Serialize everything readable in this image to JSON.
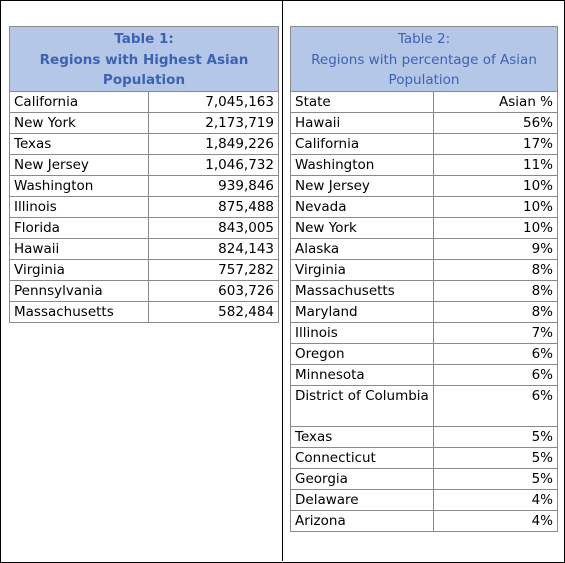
{
  "table1": {
    "title_line1": "Table 1:",
    "title_rest": "Regions with Highest Asian Population",
    "rows": [
      {
        "name": "California",
        "value": "7,045,163"
      },
      {
        "name": "New York",
        "value": "2,173,719"
      },
      {
        "name": "Texas",
        "value": "1,849,226"
      },
      {
        "name": "New Jersey",
        "value": "1,046,732"
      },
      {
        "name": "Washington",
        "value": "939,846"
      },
      {
        "name": "Illinois",
        "value": "875,488"
      },
      {
        "name": "Florida",
        "value": "843,005"
      },
      {
        "name": "Hawaii",
        "value": "824,143"
      },
      {
        "name": "Virginia",
        "value": "757,282"
      },
      {
        "name": "Pennsylvania",
        "value": "603,726"
      },
      {
        "name": "Massachusetts",
        "value": "582,484"
      }
    ]
  },
  "table2": {
    "title_line1": "Table 2:",
    "title_rest": "Regions with percentage of Asian Population",
    "header": {
      "state": "State",
      "pct": "Asian %"
    },
    "rows": [
      {
        "state": "Hawaii",
        "pct": "56%"
      },
      {
        "state": "California",
        "pct": "17%"
      },
      {
        "state": "Washington",
        "pct": "11%"
      },
      {
        "state": "New Jersey",
        "pct": "10%"
      },
      {
        "state": "Nevada",
        "pct": "10%"
      },
      {
        "state": "New York",
        "pct": "10%"
      },
      {
        "state": "Alaska",
        "pct": "9%"
      },
      {
        "state": "Virginia",
        "pct": "8%"
      },
      {
        "state": "Massachusetts",
        "pct": "8%"
      },
      {
        "state": "Maryland",
        "pct": "8%"
      },
      {
        "state": "Illinois",
        "pct": "7%"
      },
      {
        "state": "Oregon",
        "pct": "6%"
      },
      {
        "state": "Minnesota",
        "pct": "6%"
      },
      {
        "state": "District of Columbia",
        "pct": "6%",
        "wrap": true
      },
      {
        "state": "Texas",
        "pct": "5%"
      },
      {
        "state": "Connecticut",
        "pct": "5%"
      },
      {
        "state": "Georgia",
        "pct": "5%"
      },
      {
        "state": "Delaware",
        "pct": "4%"
      },
      {
        "state": "Arizona",
        "pct": "4%"
      }
    ]
  }
}
